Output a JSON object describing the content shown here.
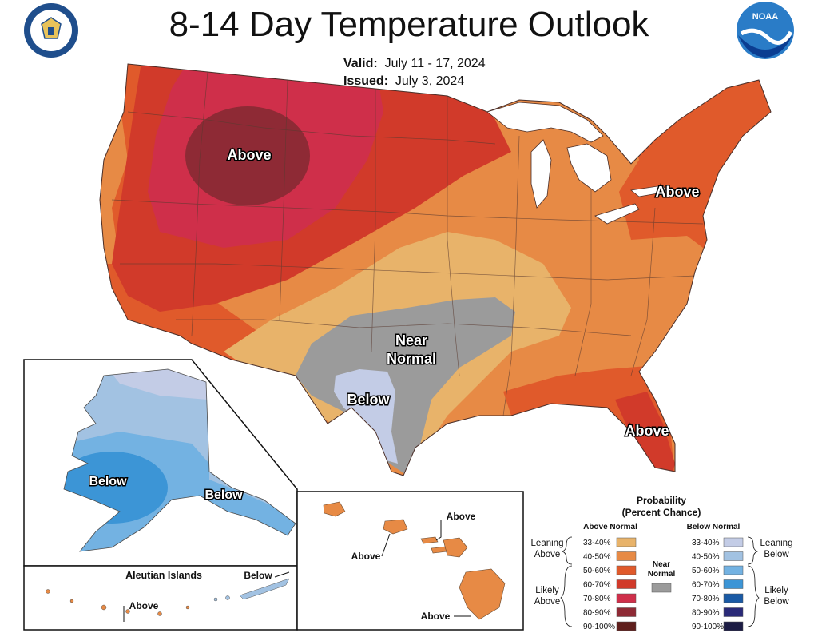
{
  "header": {
    "title": "8-14 Day Temperature Outlook",
    "valid_label": "Valid:",
    "valid_value": "July 11 - 17, 2024",
    "issued_label": "Issued:",
    "issued_value": "July 3, 2024",
    "noaa_logo_text": "NOAA"
  },
  "map_labels": {
    "conus_northwest": "Above",
    "conus_northeast": "Above",
    "conus_near_normal_line1": "Near",
    "conus_near_normal_line2": "Normal",
    "conus_texas": "Below",
    "conus_florida": "Above",
    "alaska_west": "Below",
    "alaska_southeast": "Below",
    "aleutian_title": "Aleutian Islands",
    "aleutian_east": "Below",
    "aleutian_west": "Above",
    "hawaii_north": "Above",
    "hawaii_west": "Above",
    "hawaii_south": "Above"
  },
  "legend": {
    "title_line1": "Probability",
    "title_line2": "(Percent Chance)",
    "above_header": "Above Normal",
    "below_header": "Below Normal",
    "near_normal_line1": "Near",
    "near_normal_line2": "Normal",
    "leaning_above_1": "Leaning",
    "leaning_above_2": "Above",
    "likely_above_1": "Likely",
    "likely_above_2": "Above",
    "leaning_below_1": "Leaning",
    "leaning_below_2": "Below",
    "likely_below_1": "Likely",
    "likely_below_2": "Below",
    "near_color": "#9b9b9b",
    "above_items": [
      {
        "label": "33-40%",
        "color": "#e8b36a"
      },
      {
        "label": "40-50%",
        "color": "#e78a45"
      },
      {
        "label": "50-60%",
        "color": "#e05a2b"
      },
      {
        "label": "60-70%",
        "color": "#d13a2a"
      },
      {
        "label": "70-80%",
        "color": "#cf2f4a"
      },
      {
        "label": "80-90%",
        "color": "#8e2a35"
      },
      {
        "label": "90-100%",
        "color": "#5f1f1c"
      }
    ],
    "below_items": [
      {
        "label": "33-40%",
        "color": "#c3cce6"
      },
      {
        "label": "40-50%",
        "color": "#a2c2e2"
      },
      {
        "label": "50-60%",
        "color": "#73b2e2"
      },
      {
        "label": "60-70%",
        "color": "#3c95d6"
      },
      {
        "label": "70-80%",
        "color": "#1a5aa5"
      },
      {
        "label": "80-90%",
        "color": "#2a2a78"
      },
      {
        "label": "90-100%",
        "color": "#1c1c44"
      }
    ]
  }
}
